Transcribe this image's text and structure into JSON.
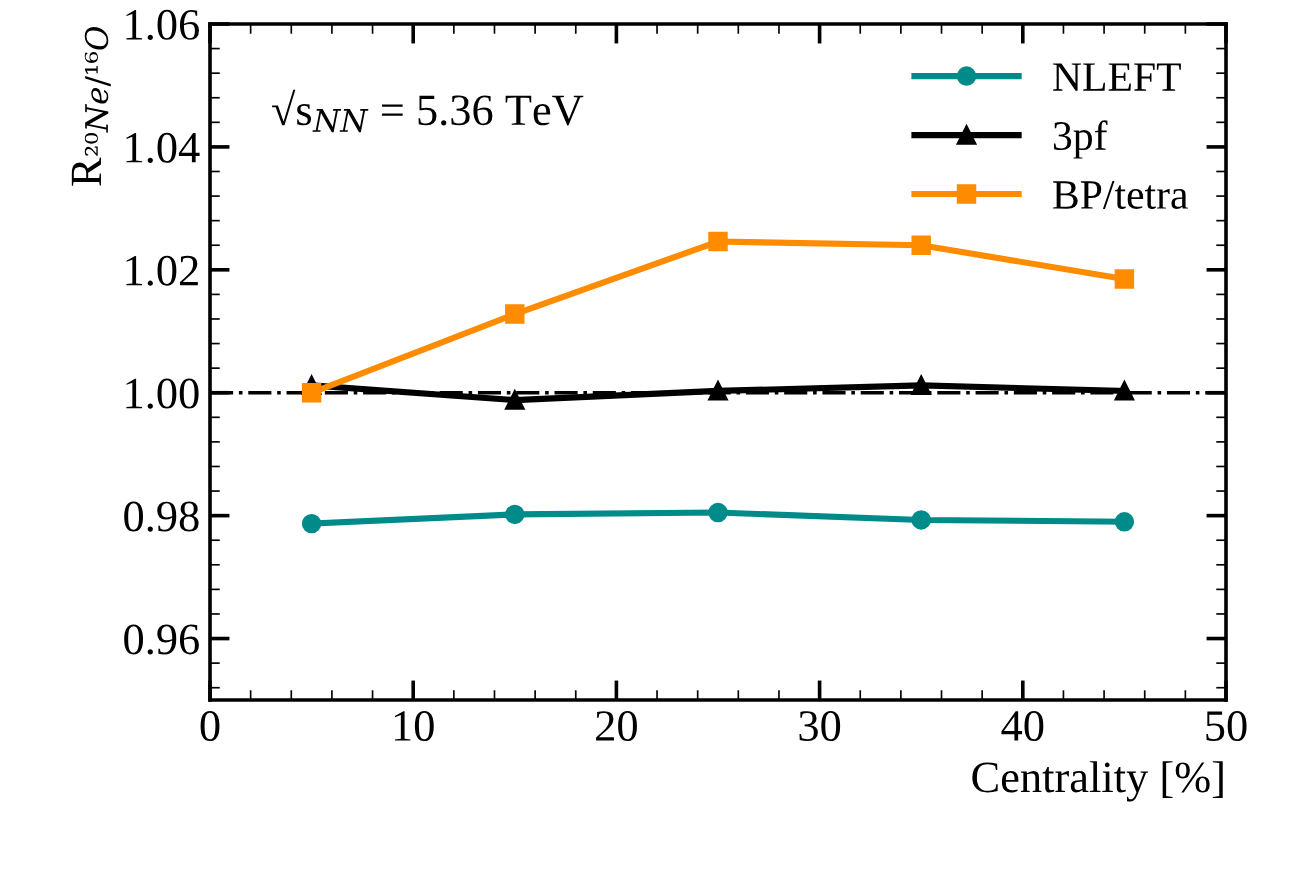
{
  "chart_data": {
    "type": "line",
    "xlabel": "Centrality [%]",
    "ylabel": "R$_{²⁰Ne/¹⁶O}$",
    "annotations": [
      "√s$_{NN}$ = 5.36 TeV"
    ],
    "x": [
      5,
      15,
      25,
      35,
      45
    ],
    "series": [
      {
        "name": "NLEFT",
        "color": "#008b8b",
        "values": [
          0.9787,
          0.9802,
          0.9805,
          0.9793,
          0.979
        ],
        "marker": "circle"
      },
      {
        "name": "3pf",
        "color": "#000000",
        "values": [
          1.0012,
          0.9988,
          1.0003,
          1.0012,
          1.0003
        ],
        "marker": "triangle"
      },
      {
        "name": "BP/tetra",
        "color": "#ff8c00",
        "values": [
          1.0,
          1.0128,
          1.0246,
          1.024,
          1.0185
        ],
        "marker": "square"
      }
    ],
    "xlim": [
      0,
      50
    ],
    "xticks": [
      0,
      10,
      20,
      30,
      40,
      50
    ],
    "ylim": [
      0.95,
      1.06
    ],
    "yticks": [
      {
        "value": 0.96,
        "label": "0.96"
      },
      {
        "value": 0.98,
        "label": "0.98"
      },
      {
        "value": 1.0,
        "label": "1.00"
      },
      {
        "value": 1.02,
        "label": "1.02"
      },
      {
        "value": 1.04,
        "label": "1.04"
      },
      {
        "value": 1.06,
        "label": "1.06"
      }
    ],
    "ref_lines": [
      {
        "axis": "y",
        "value": 1.0,
        "color": "#000000",
        "line_style": "dashdot"
      }
    ],
    "legend": "top right",
    "grid": false,
    "line_style": "solid"
  }
}
